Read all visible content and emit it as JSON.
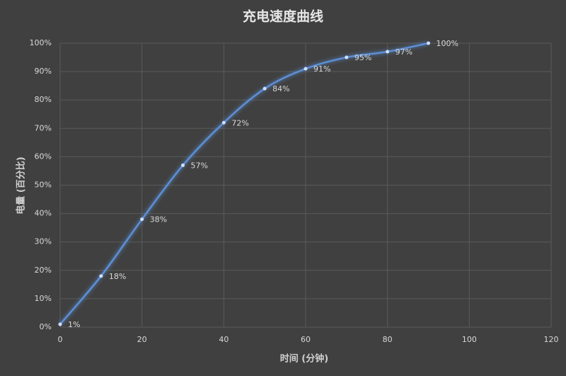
{
  "chart_data": {
    "type": "line",
    "title": "充电速度曲线",
    "x_label": "时间 (分钟)",
    "y_label": "电量 (百分比)",
    "x": [
      0,
      10,
      20,
      30,
      40,
      50,
      60,
      70,
      80,
      90
    ],
    "series": [
      {
        "name": "电量",
        "color": "#5b8fd6",
        "values": [
          1,
          18,
          38,
          57,
          72,
          84,
          91,
          95,
          97,
          100
        ],
        "value_labels": [
          "1%",
          "18%",
          "38%",
          "57%",
          "72%",
          "84%",
          "91%",
          "95%",
          "97%",
          "100%"
        ]
      }
    ],
    "xlim": [
      0,
      120
    ],
    "xticks": [
      0,
      20,
      40,
      60,
      80,
      100,
      120
    ],
    "ylim": [
      0,
      100
    ],
    "yticks": [
      {
        "value": 0,
        "label": "0%"
      },
      {
        "value": 10,
        "label": "10%"
      },
      {
        "value": 20,
        "label": "20%"
      },
      {
        "value": 30,
        "label": "30%"
      },
      {
        "value": 40,
        "label": "40%"
      },
      {
        "value": 50,
        "label": "50%"
      },
      {
        "value": 60,
        "label": "60%"
      },
      {
        "value": 70,
        "label": "70%"
      },
      {
        "value": 80,
        "label": "80%"
      },
      {
        "value": 90,
        "label": "90%"
      },
      {
        "value": 100,
        "label": "100%"
      }
    ],
    "grid": true
  }
}
